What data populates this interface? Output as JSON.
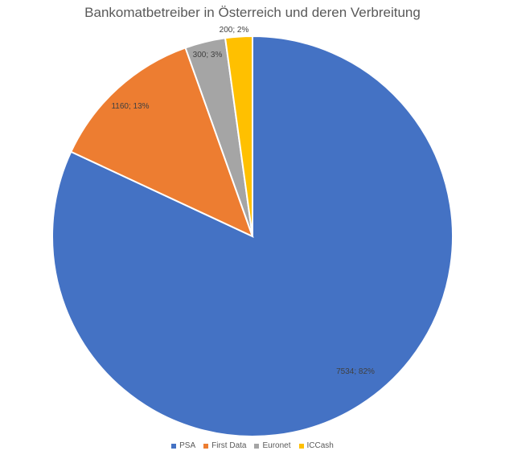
{
  "chart_data": {
    "type": "pie",
    "title": "Bankomatbetreiber in Österreich und deren Verbreitung",
    "categories": [
      "PSA",
      "First Data",
      "Euronet",
      "ICCash"
    ],
    "values": [
      7534,
      1160,
      300,
      200
    ],
    "data_labels": [
      "7534; 82%",
      "1160; 13%",
      "300; 3%",
      "200; 2%"
    ],
    "colors": [
      "#4472C4",
      "#ED7D31",
      "#A5A5A5",
      "#FFC000"
    ],
    "legend_position": "bottom",
    "start_angle": "12 o'clock",
    "direction": "clockwise"
  }
}
